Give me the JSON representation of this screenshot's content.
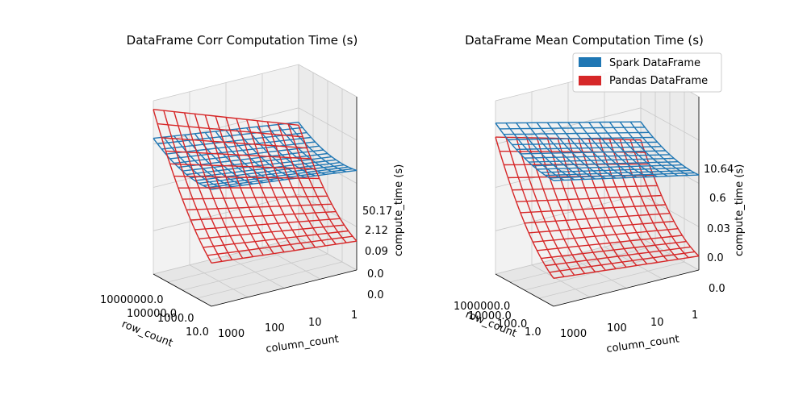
{
  "colors": {
    "spark": "#1f77b4",
    "pandas": "#d62728",
    "pane": "#f2f2f2",
    "grid": "#c8c8c8",
    "edge": "#000000"
  },
  "chart_data": [
    {
      "type": "surface",
      "title": "DataFrame Corr Computation Time (s)",
      "xlabel": "row_count",
      "ylabel": "column_count",
      "zlabel": "compute_time (s)",
      "zscale": "log",
      "x_ticks": [
        "10000000.0",
        "100000.0",
        "1000.0",
        "10.0"
      ],
      "y_ticks": [
        "1000",
        "100",
        "10",
        "1"
      ],
      "z_ticks": [
        "50.17",
        "2.12",
        "0.09",
        "0.0",
        "0.0"
      ],
      "grid": true,
      "series": [
        {
          "name": "Spark DataFrame",
          "color": "#1f77b4",
          "corner_log_time": {
            "max_rows_max_cols": 1.7,
            "max_rows_min_cols": 1.0,
            "min_rows_max_cols": 1.05,
            "min_rows_min_cols": 0.45
          },
          "curvature": 0.5
        },
        {
          "name": "Pandas DataFrame",
          "color": "#d62728",
          "corner_log_time": {
            "max_rows_max_cols": 2.7,
            "max_rows_min_cols": 0.9,
            "min_rows_max_cols": -1.5,
            "min_rows_min_cols": -2.0
          },
          "curvature": 0.9
        }
      ]
    },
    {
      "type": "surface",
      "title": "DataFrame Mean Computation Time (s)",
      "xlabel": "row_count",
      "ylabel": "column_count",
      "zlabel": "compute_time (s)",
      "zscale": "log",
      "x_ticks": [
        "1000000.0",
        "10000.0",
        "100.0",
        "1.0"
      ],
      "y_ticks": [
        "1000",
        "100",
        "10",
        "1"
      ],
      "z_ticks": [
        "10.64",
        "0.6",
        "0.03",
        "0.0",
        "0.0"
      ],
      "grid": true,
      "legend": {
        "placement": "top-right",
        "entries": [
          "Spark DataFrame",
          "Pandas DataFrame"
        ]
      },
      "series": [
        {
          "name": "Spark DataFrame",
          "color": "#1f77b4",
          "corner_log_time": {
            "max_rows_max_cols": 1.8,
            "max_rows_min_cols": 0.55,
            "min_rows_max_cols": 0.9,
            "min_rows_min_cols": -0.2
          },
          "curvature": 0.45
        },
        {
          "name": "Pandas DataFrame",
          "color": "#d62728",
          "corner_log_time": {
            "max_rows_max_cols": 1.3,
            "max_rows_min_cols": -0.1,
            "min_rows_max_cols": -2.6,
            "min_rows_min_cols": -3.1
          },
          "curvature": 1.1
        }
      ]
    }
  ]
}
